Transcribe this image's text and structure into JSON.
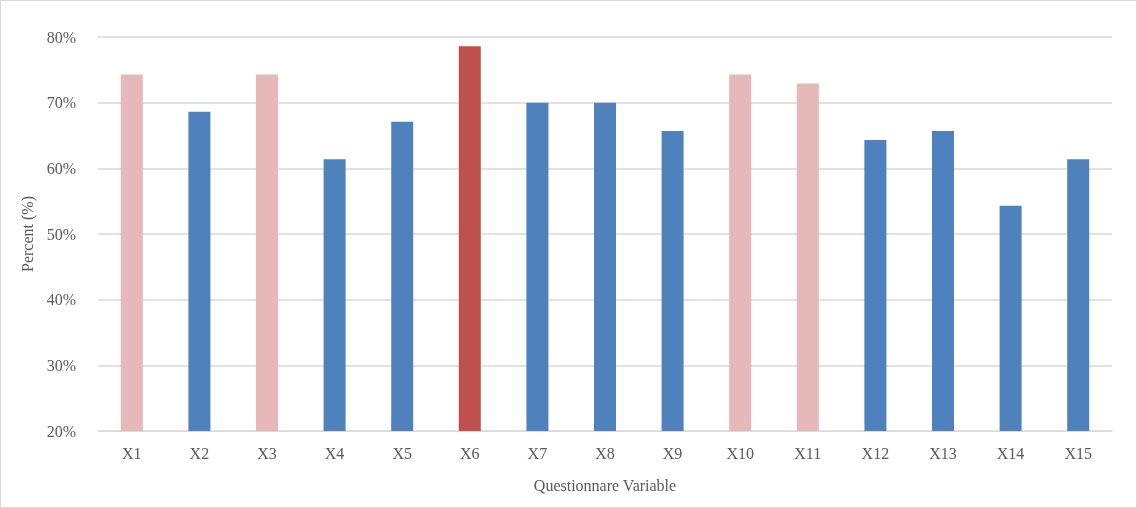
{
  "chart_data": {
    "type": "bar",
    "xlabel": "Questionnare Variable",
    "ylabel": "Percent (%)",
    "categories": [
      "X1",
      "X2",
      "X3",
      "X4",
      "X5",
      "X6",
      "X7",
      "X8",
      "X9",
      "X10",
      "X11",
      "X12",
      "X13",
      "X14",
      "X15"
    ],
    "values": [
      74.3,
      68.6,
      74.3,
      61.4,
      67.1,
      78.6,
      70,
      70,
      65.7,
      74.3,
      72.9,
      64.3,
      65.7,
      54.3,
      61.4
    ],
    "colors": [
      "#e6b8b7",
      "#4f81bd",
      "#e6b8b7",
      "#4f81bd",
      "#4f81bd",
      "#c0504d",
      "#4f81bd",
      "#4f81bd",
      "#4f81bd",
      "#e6b8b7",
      "#e6b8b7",
      "#4f81bd",
      "#4f81bd",
      "#4f81bd",
      "#4f81bd"
    ],
    "ylim": [
      20,
      80
    ],
    "yticks": [
      {
        "value": 20,
        "label": "20%"
      },
      {
        "value": 30,
        "label": "30%"
      },
      {
        "value": 40,
        "label": "40%"
      },
      {
        "value": 50,
        "label": "50%"
      },
      {
        "value": 60,
        "label": "60%"
      },
      {
        "value": 70,
        "label": "70%"
      },
      {
        "value": 80,
        "label": "80%"
      }
    ],
    "grid": "y"
  }
}
